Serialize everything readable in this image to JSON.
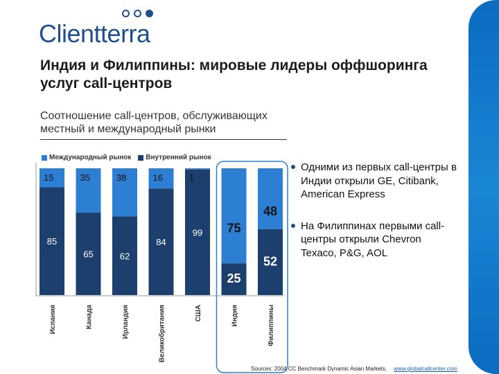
{
  "logo": {
    "text": "Clientterra"
  },
  "slide": {
    "title": "Индия и Филиппины: мировые лидеры оффшоринга услуг call-центров",
    "subtitle": "Соотношение call-центров, обслуживающих местный и международный рынки"
  },
  "colors": {
    "brand": "#1f4f8f",
    "international": "#2d7fd4",
    "domestic": "#1c3f6e"
  },
  "chart_data": {
    "type": "bar",
    "stacked": true,
    "categories": [
      "Испания",
      "Канада",
      "Ирландия",
      "Великобритания",
      "США",
      "Индия",
      "Филиппины"
    ],
    "series": [
      {
        "name": "Внутренний рынок",
        "values": [
          85,
          65,
          62,
          84,
          99,
          25,
          52
        ]
      },
      {
        "name": "Международный рынок",
        "values": [
          15,
          35,
          38,
          16,
          1,
          75,
          48
        ]
      }
    ],
    "ylim": [
      0,
      100
    ],
    "highlighted": [
      "Индия",
      "Филиппины"
    ],
    "legend": [
      "Международный рынок",
      "Внутренний рынок"
    ]
  },
  "bullets": [
    "Одними из первых call-центры в Индии открыли GE, Citibank, American Express",
    "На Филиппинах первыми call-центры открыли Chevron Texaco, P&G, AOL"
  ],
  "source": {
    "text": "Sources: 2004 CC Benchmark Dynamic Asian Markets,",
    "link": "www.globalcallcenter.com"
  }
}
